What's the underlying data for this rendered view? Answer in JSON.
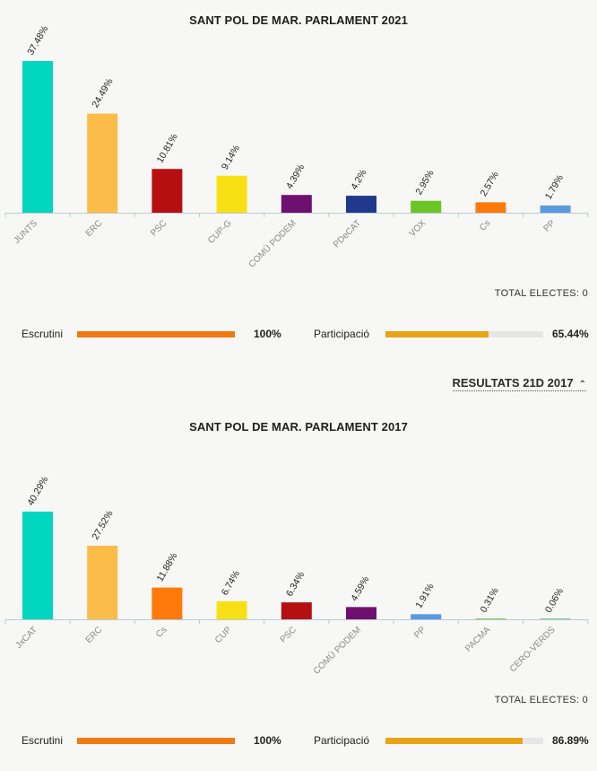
{
  "section2021": {
    "title": "SANT POL DE MAR. PARLAMENT 2021",
    "total_label": "TOTAL ELECTES: 0",
    "escrutini": {
      "label": "Escrutini",
      "value": "100%",
      "fraction": 1.0,
      "color": "#f07a12"
    },
    "participacio": {
      "label": "Participació",
      "value": "65.44%",
      "fraction": 0.6544,
      "color": "#e8a317"
    }
  },
  "toggle": {
    "label": "RESULTATS 21D 2017"
  },
  "section2017": {
    "title": "SANT POL DE MAR. PARLAMENT 2017",
    "total_label": "TOTAL ELECTES: 0",
    "escrutini": {
      "label": "Escrutini",
      "value": "100%",
      "fraction": 1.0,
      "color": "#f07a12"
    },
    "participacio": {
      "label": "Participació",
      "value": "86.89%",
      "fraction": 0.8689,
      "color": "#e8a317"
    }
  },
  "chart_data": [
    {
      "type": "bar",
      "title": "SANT POL DE MAR. PARLAMENT 2021",
      "categories": [
        "JUNTS",
        "ERC",
        "PSC",
        "CUP-G",
        "COMÚ PODEM",
        "PDeCAT",
        "VOX",
        "Cs",
        "PP"
      ],
      "values": [
        37.48,
        24.49,
        10.81,
        9.14,
        4.39,
        4.2,
        2.95,
        2.57,
        1.79
      ],
      "labels": [
        "37.48%",
        "24.49%",
        "10.81%",
        "9.14%",
        "4.39%",
        "4.2%",
        "2.95%",
        "2.57%",
        "1.79%"
      ],
      "colors": [
        "#00d6bf",
        "#fbbd47",
        "#b50f12",
        "#f7df15",
        "#6e1070",
        "#1f3a8c",
        "#6cc425",
        "#ff7a0a",
        "#5b9ae0"
      ],
      "ylim": [
        0,
        37.48
      ],
      "grid": false
    },
    {
      "type": "bar",
      "title": "SANT POL DE MAR. PARLAMENT 2017",
      "categories": [
        "JxCAT",
        "ERC",
        "Cs",
        "CUP",
        "PSC",
        "COMÚ PODEM",
        "PP",
        "PACMA",
        "CERO-VERDS"
      ],
      "values": [
        40.29,
        27.52,
        11.88,
        6.74,
        6.34,
        4.59,
        1.91,
        0.31,
        0.06
      ],
      "labels": [
        "40.29%",
        "27.52%",
        "11.88%",
        "6.74%",
        "6.34%",
        "4.59%",
        "1.91%",
        "0.31%",
        "0.06%"
      ],
      "colors": [
        "#00d6bf",
        "#fbbd47",
        "#ff7a0a",
        "#f7df15",
        "#b50f12",
        "#6e1070",
        "#5b9ae0",
        "#7dc242",
        "#3ca56e"
      ],
      "ylim": [
        0,
        40.29
      ],
      "grid": false
    }
  ]
}
